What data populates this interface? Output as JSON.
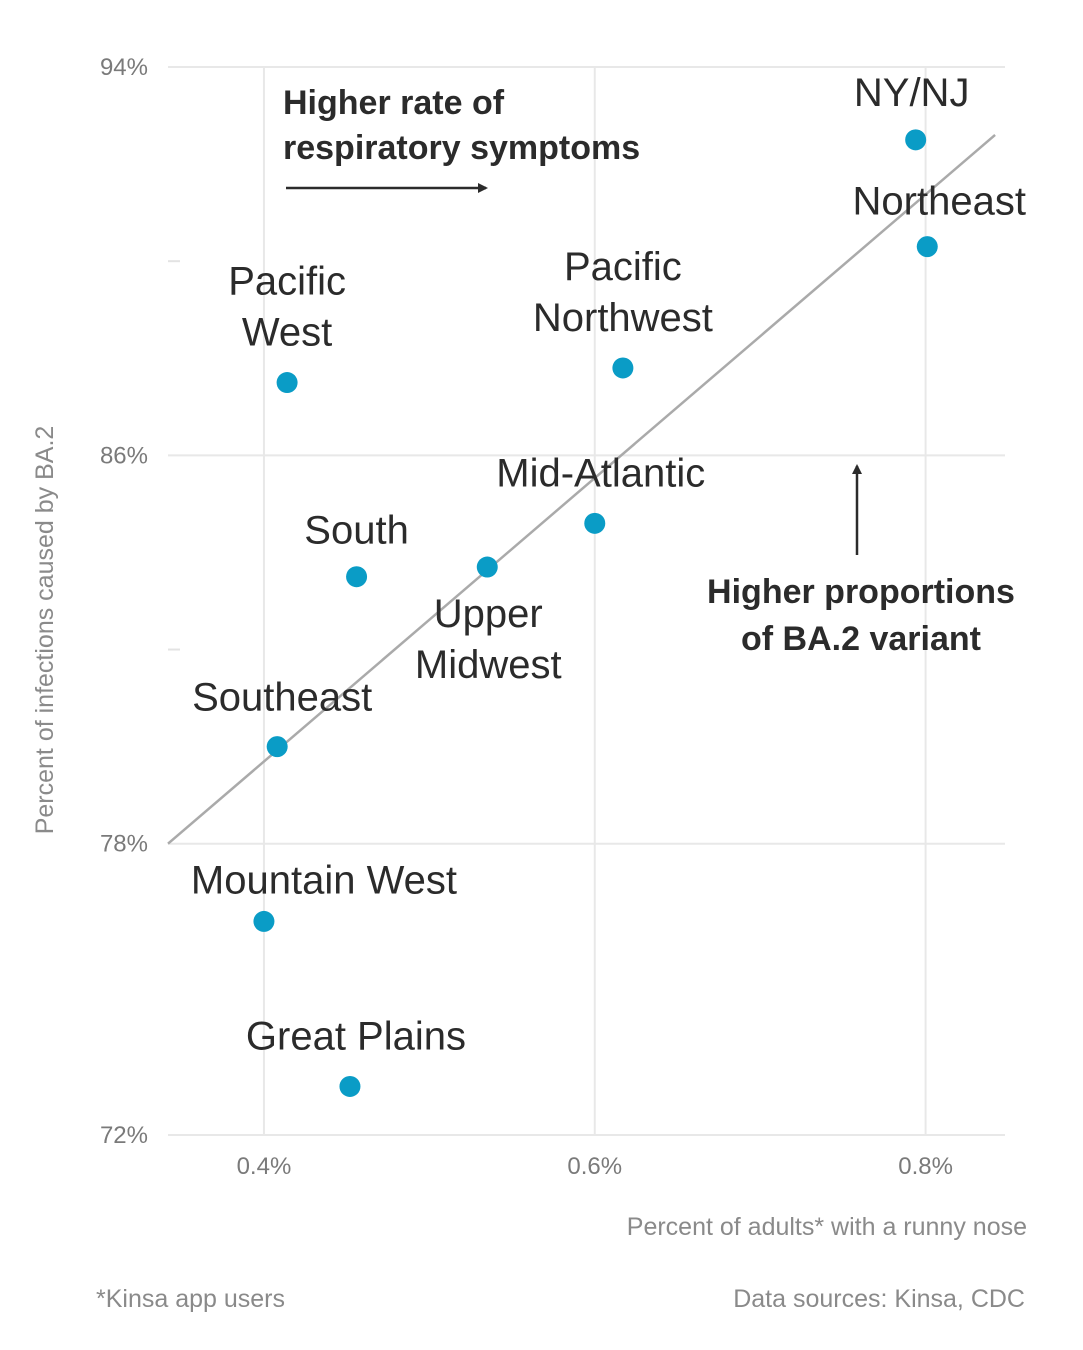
{
  "chart_data": {
    "type": "scatter",
    "xlabel": "Percent of adults* with a runny nose",
    "ylabel": "Percent of infections caused by BA.2",
    "xlim": [
      0.342,
      0.848
    ],
    "ylim": [
      72,
      94
    ],
    "x_ticks": [
      {
        "value": 0.4,
        "label": "0.4%"
      },
      {
        "value": 0.6,
        "label": "0.6%"
      },
      {
        "value": 0.8,
        "label": "0.8%"
      }
    ],
    "y_ticks": [
      {
        "value": 94,
        "label": "94%"
      },
      {
        "value": 86,
        "label": "86%"
      },
      {
        "value": 78,
        "label": "78%"
      },
      {
        "value": 72,
        "label": "72%"
      }
    ],
    "y_minor_ticks": [
      90,
      82
    ],
    "grid": true,
    "point_color": "#0a9cc6",
    "trend_color": "#aaaaaa",
    "trendline": {
      "x": [
        0.342,
        0.842
      ],
      "y": [
        78.0,
        92.6
      ]
    },
    "points": [
      {
        "label_lines": [
          "NY/NJ"
        ],
        "x": 0.794,
        "y": 92.5
      },
      {
        "label_lines": [
          "Northeast"
        ],
        "x": 0.801,
        "y": 90.3
      },
      {
        "label_lines": [
          "Pacific",
          "Northwest"
        ],
        "x": 0.617,
        "y": 87.8
      },
      {
        "label_lines": [
          "Pacific",
          "West"
        ],
        "x": 0.414,
        "y": 87.5
      },
      {
        "label_lines": [
          "Mid-Atlantic"
        ],
        "x": 0.6,
        "y": 84.6
      },
      {
        "label_lines": [
          "Upper",
          "Midwest"
        ],
        "x": 0.535,
        "y": 83.7
      },
      {
        "label_lines": [
          "South"
        ],
        "x": 0.456,
        "y": 83.5
      },
      {
        "label_lines": [
          "Southeast"
        ],
        "x": 0.408,
        "y": 80.0
      },
      {
        "label_lines": [
          "Mountain West"
        ],
        "x": 0.4,
        "y": 76.4
      },
      {
        "label_lines": [
          "Great Plains"
        ],
        "x": 0.452,
        "y": 73.0
      }
    ],
    "annotations": [
      {
        "lines": [
          "Higher rate of",
          "respiratory symptoms"
        ],
        "arrow": "right"
      },
      {
        "lines": [
          "Higher proportions",
          "of BA.2 variant"
        ],
        "arrow": "up"
      }
    ]
  },
  "footer": {
    "note": "*Kinsa app users",
    "source": "Data sources: Kinsa, CDC"
  }
}
